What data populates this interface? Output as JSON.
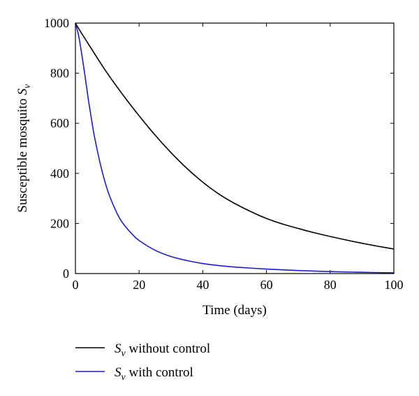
{
  "chart_data": {
    "type": "line",
    "xlabel": "Time (days)",
    "ylabel": "Susceptible mosquito ",
    "ylabel_math": "S",
    "ylabel_sub": "v",
    "xlim": [
      0,
      100
    ],
    "ylim": [
      0,
      1000
    ],
    "xticks": [
      0,
      20,
      40,
      60,
      80,
      100
    ],
    "yticks": [
      0,
      200,
      400,
      600,
      800,
      1000
    ],
    "grid": false,
    "legend_position": "bottom-left, below plot",
    "series": [
      {
        "name": "Sv without control",
        "legend_math": "S",
        "legend_sub": "v",
        "legend_text": " without control",
        "color": "#000000",
        "x": [
          0,
          2,
          5,
          10,
          15,
          20,
          25,
          30,
          35,
          40,
          45,
          50,
          55,
          60,
          65,
          70,
          75,
          80,
          85,
          90,
          95,
          100
        ],
        "y": [
          1000,
          958,
          898,
          800,
          712,
          630,
          553,
          483,
          420,
          365,
          318,
          280,
          248,
          220,
          198,
          180,
          163,
          148,
          134,
          121,
          109,
          98
        ]
      },
      {
        "name": "Sv with control",
        "legend_math": "S",
        "legend_sub": "v",
        "legend_text": " with control",
        "color": "#1c1ccc",
        "x": [
          0,
          1,
          2,
          3,
          4,
          5,
          6,
          8,
          10,
          12,
          14,
          16,
          18,
          20,
          25,
          30,
          35,
          40,
          45,
          50,
          60,
          70,
          80,
          90,
          100
        ],
        "y": [
          1000,
          950,
          875,
          790,
          700,
          620,
          545,
          428,
          336,
          270,
          218,
          183,
          155,
          132,
          93,
          68,
          52,
          40,
          32,
          26,
          18,
          12,
          8,
          5,
          3
        ]
      }
    ]
  }
}
